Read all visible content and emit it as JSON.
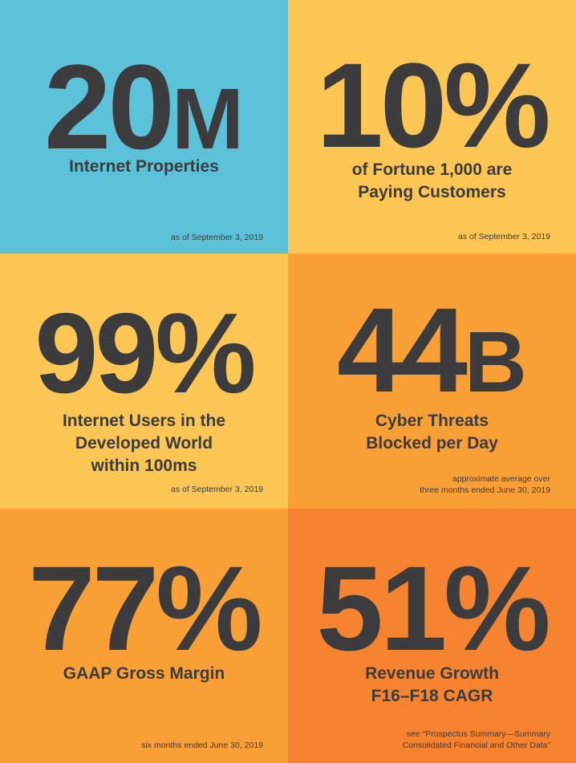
{
  "colors": {
    "blue": "#5cc2d9",
    "yellow": "#fbc654",
    "orange": "#f89f36",
    "deep_orange": "#f5832f",
    "text": "#3c3c3e"
  },
  "stats": [
    {
      "value": "20",
      "suffix": "M",
      "caption": [
        "Internet Properties"
      ],
      "footnote": [
        "as of September 3, 2019"
      ]
    },
    {
      "value": "10%",
      "suffix": "",
      "caption": [
        "of Fortune 1,000 are",
        "Paying Customers"
      ],
      "footnote": [
        "as of September 3, 2019"
      ]
    },
    {
      "value": "99%",
      "suffix": "",
      "caption": [
        "Internet Users in the",
        "Developed World",
        "within 100ms"
      ],
      "footnote": [
        "as of September 3, 2019"
      ]
    },
    {
      "value": "44",
      "suffix": "B",
      "caption": [
        "Cyber Threats",
        "Blocked per Day"
      ],
      "footnote": [
        "approximate average over",
        "three months ended June 30, 2019"
      ]
    },
    {
      "value": "77%",
      "suffix": "",
      "caption": [
        "GAAP Gross Margin"
      ],
      "footnote": [
        "six months ended June 30, 2019"
      ]
    },
    {
      "value": "51%",
      "suffix": "",
      "caption": [
        "Revenue Growth",
        "F16–F18 CAGR"
      ],
      "footnote": [
        "see “Prospectus Summary—Summary",
        "Consolidated Financial and Other Data”"
      ]
    }
  ]
}
